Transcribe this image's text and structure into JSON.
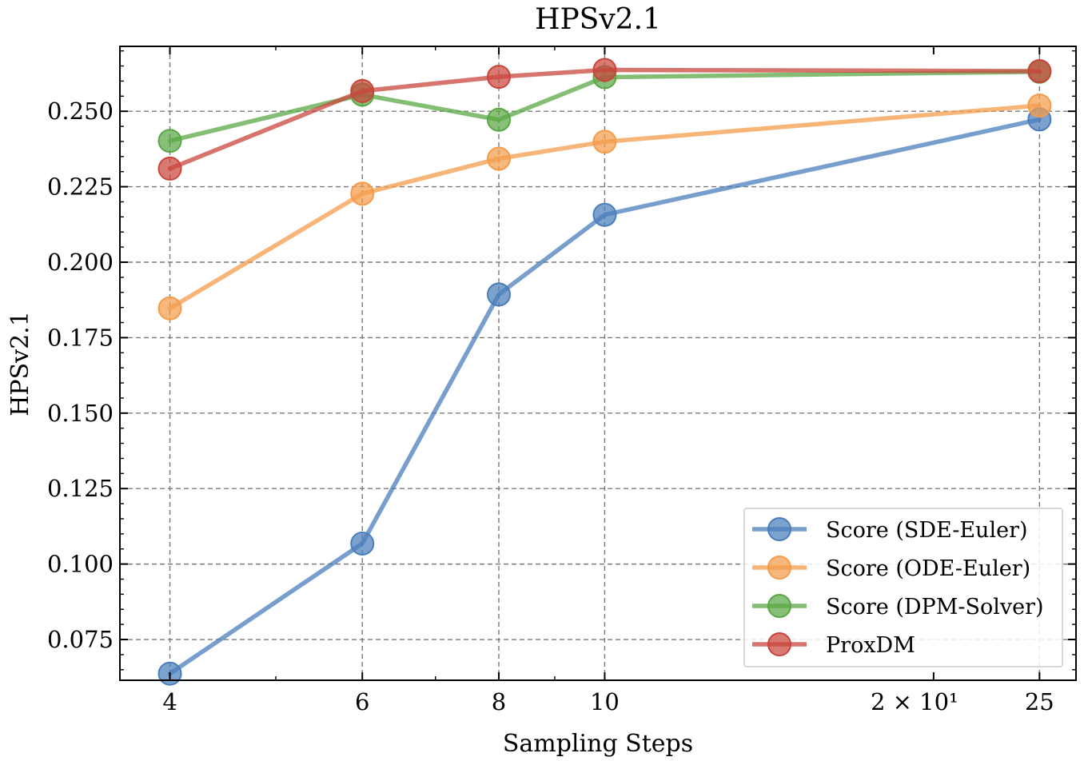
{
  "chart_data": {
    "type": "line",
    "title": "HPSv2.1",
    "xlabel": "Sampling Steps",
    "ylabel": "HPSv2.1",
    "x_scale": "log",
    "x": [
      4,
      6,
      8,
      10,
      25
    ],
    "xlim": [
      3.6,
      27
    ],
    "ylim": [
      0.0615,
      0.2715
    ],
    "x_ticks": [
      {
        "value": 4,
        "label": "4"
      },
      {
        "value": 6,
        "label": "6"
      },
      {
        "value": 8,
        "label": "8"
      },
      {
        "value": 10,
        "label": "10"
      },
      {
        "value": 20,
        "label": "2 × 10¹"
      },
      {
        "value": 25,
        "label": "25"
      }
    ],
    "y_ticks": [
      {
        "value": 0.075,
        "label": "0.075"
      },
      {
        "value": 0.1,
        "label": "0.100"
      },
      {
        "value": 0.125,
        "label": "0.125"
      },
      {
        "value": 0.15,
        "label": "0.150"
      },
      {
        "value": 0.175,
        "label": "0.175"
      },
      {
        "value": 0.2,
        "label": "0.200"
      },
      {
        "value": 0.225,
        "label": "0.225"
      },
      {
        "value": 0.25,
        "label": "0.250"
      }
    ],
    "grid": true,
    "legend_position": "bottom-right",
    "series": [
      {
        "name": "Score (SDE-Euler)",
        "color": "#4a7ebb",
        "values": [
          0.0637,
          0.1068,
          0.1893,
          0.2157,
          0.2473
        ]
      },
      {
        "name": "Score (ODE-Euler)",
        "color": "#f49c4c",
        "values": [
          0.1847,
          0.2227,
          0.2343,
          0.2399,
          0.2519
        ]
      },
      {
        "name": "Score (DPM-Solver)",
        "color": "#5aa845",
        "values": [
          0.2402,
          0.2555,
          0.2472,
          0.2613,
          0.2631
        ]
      },
      {
        "name": "ProxDM",
        "color": "#c9453c",
        "values": [
          0.231,
          0.2567,
          0.2614,
          0.2637,
          0.2633
        ]
      }
    ]
  }
}
